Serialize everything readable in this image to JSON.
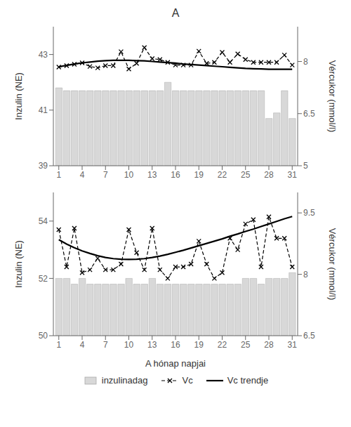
{
  "chart_data": [
    {
      "type": "bar",
      "title": "A",
      "ylabel": "Inzulin (NE)",
      "y2label": "Vércukor (mmol/l)",
      "x": [
        1,
        2,
        3,
        4,
        5,
        6,
        7,
        8,
        9,
        10,
        11,
        12,
        13,
        14,
        15,
        16,
        17,
        18,
        19,
        20,
        21,
        22,
        23,
        24,
        25,
        26,
        27,
        28,
        29,
        30,
        31
      ],
      "xlim": [
        0.3,
        31.7
      ],
      "xticks": [
        1,
        4,
        7,
        10,
        13,
        16,
        19,
        22,
        25,
        28,
        31
      ],
      "ylim": [
        39,
        44
      ],
      "yticks": [
        39,
        41,
        43
      ],
      "y2lim": [
        5,
        9
      ],
      "y2ticks": [
        5,
        6.5,
        8
      ],
      "grid": false,
      "series": [
        {
          "name": "inzulinadag",
          "type": "bar",
          "color": "#d8d8d8",
          "values": [
            41.8,
            41.7,
            41.7,
            41.7,
            41.7,
            41.7,
            41.7,
            41.7,
            41.7,
            41.7,
            41.7,
            41.7,
            41.7,
            41.7,
            42.0,
            41.7,
            41.7,
            41.7,
            41.7,
            41.7,
            41.7,
            41.7,
            41.7,
            41.7,
            41.7,
            41.7,
            41.7,
            40.7,
            40.9,
            41.7,
            40.7
          ]
        },
        {
          "name": "Vc",
          "type": "line",
          "color": "#000000",
          "marker": "x",
          "line_style": "dashed",
          "values": [
            42.55,
            42.6,
            42.65,
            42.7,
            42.57,
            42.52,
            42.6,
            42.6,
            43.1,
            42.48,
            42.68,
            43.25,
            42.85,
            42.82,
            42.72,
            42.62,
            42.62,
            42.62,
            43.12,
            42.68,
            42.72,
            43.08,
            42.72,
            43.02,
            42.82,
            42.72,
            42.72,
            42.72,
            42.72,
            42.98,
            42.62
          ]
        },
        {
          "name": "Vc trendje",
          "type": "line",
          "color": "#000000",
          "line_style": "solid",
          "values": [
            42.56,
            42.61,
            42.66,
            42.7,
            42.73,
            42.76,
            42.78,
            42.79,
            42.79,
            42.79,
            42.78,
            42.77,
            42.75,
            42.73,
            42.71,
            42.69,
            42.66,
            42.64,
            42.62,
            42.6,
            42.58,
            42.56,
            42.54,
            42.52,
            42.5,
            42.49,
            42.48,
            42.47,
            42.47,
            42.47,
            42.47
          ]
        }
      ]
    },
    {
      "type": "bar",
      "xlabel": "A hónap napjai",
      "ylabel": "Inzulin (NE)",
      "y2label": "Vércukor (mmol/l)",
      "x": [
        1,
        2,
        3,
        4,
        5,
        6,
        7,
        8,
        9,
        10,
        11,
        12,
        13,
        14,
        15,
        16,
        17,
        18,
        19,
        20,
        21,
        22,
        23,
        24,
        25,
        26,
        27,
        28,
        29,
        30,
        31
      ],
      "xlim": [
        0.3,
        31.7
      ],
      "xticks": [
        1,
        4,
        7,
        10,
        13,
        16,
        19,
        22,
        25,
        28,
        31
      ],
      "ylim": [
        50,
        55
      ],
      "yticks": [
        50,
        52,
        54
      ],
      "y2lim": [
        6.5,
        10
      ],
      "y2ticks": [
        6.5,
        8,
        9.5
      ],
      "grid": false,
      "legend": "bottom",
      "series": [
        {
          "name": "inzulinadag",
          "type": "bar",
          "color": "#d8d8d8",
          "values": [
            52.0,
            52.0,
            51.8,
            52.0,
            51.8,
            51.8,
            51.8,
            51.8,
            51.8,
            52.0,
            51.8,
            51.8,
            52.0,
            51.8,
            51.8,
            51.8,
            51.8,
            51.8,
            51.8,
            51.8,
            51.8,
            51.8,
            51.8,
            51.8,
            52.0,
            52.0,
            51.8,
            52.0,
            52.0,
            52.0,
            52.2
          ]
        },
        {
          "name": "Vc",
          "type": "line",
          "color": "#000000",
          "marker": "x",
          "line_style": "dashed",
          "values": [
            53.7,
            52.4,
            53.75,
            52.2,
            52.3,
            52.7,
            52.3,
            52.3,
            52.5,
            53.7,
            52.9,
            52.3,
            53.75,
            52.3,
            52.0,
            52.4,
            52.4,
            52.5,
            53.3,
            52.5,
            52.0,
            52.2,
            53.4,
            53.0,
            53.9,
            54.05,
            52.4,
            54.15,
            53.4,
            53.4,
            52.4
          ]
        },
        {
          "name": "Vc trendje",
          "type": "line",
          "color": "#000000",
          "line_style": "solid",
          "values": [
            53.35,
            53.2,
            53.07,
            52.96,
            52.87,
            52.79,
            52.73,
            52.69,
            52.67,
            52.66,
            52.67,
            52.69,
            52.73,
            52.78,
            52.84,
            52.91,
            52.98,
            53.06,
            53.14,
            53.22,
            53.3,
            53.38,
            53.47,
            53.55,
            53.64,
            53.72,
            53.81,
            53.9,
            53.99,
            54.08,
            54.16
          ]
        }
      ]
    }
  ]
}
